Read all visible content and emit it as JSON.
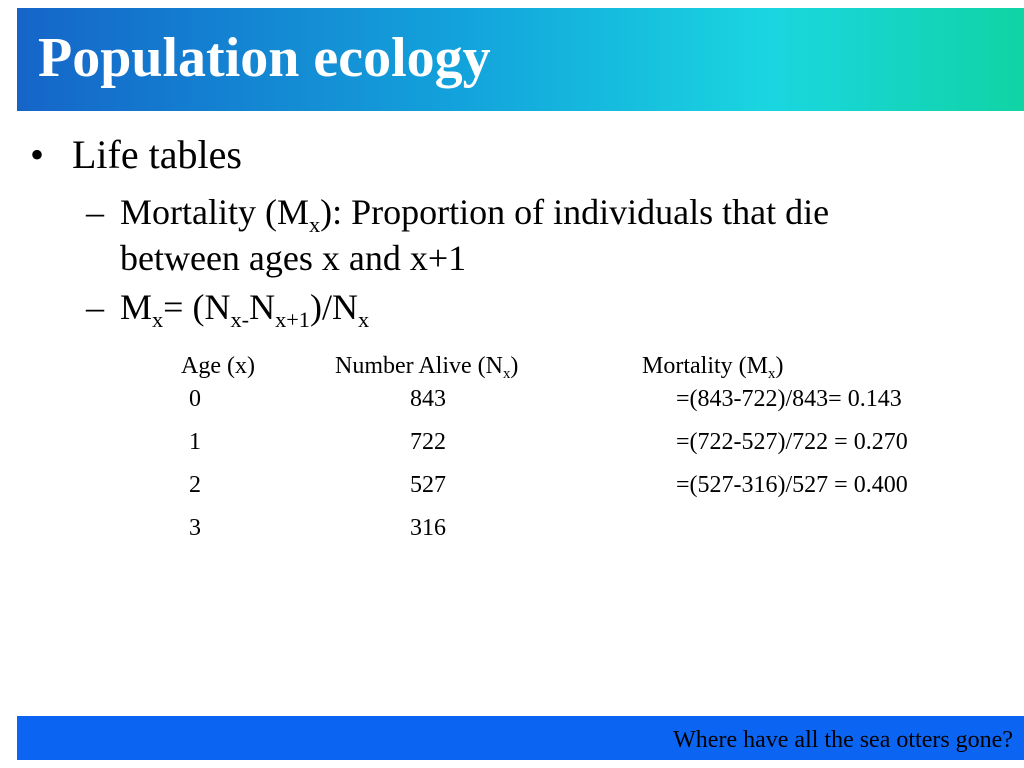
{
  "slide": {
    "title": "Population ecology",
    "bullet": "Life tables",
    "sub_bullets": {
      "mortality_def_prefix": "Mortality (M",
      "mortality_def_sub": "x",
      "mortality_def_line1_rest": "): Proportion of individuals that die",
      "mortality_def_line2": "between ages x and x+1",
      "formula_m": "M",
      "formula_m_sub": "x",
      "formula_eq": "= (N",
      "formula_n1_sub": "x-",
      "formula_n2": "N",
      "formula_n2_sub": "x+1",
      "formula_close": ")/N",
      "formula_n3_sub": "x"
    },
    "table": {
      "headers": {
        "age": "Age (x)",
        "alive_prefix": "Number Alive (N",
        "alive_sub": "x",
        "alive_suffix": ")",
        "mortality_prefix": "Mortality (M",
        "mortality_sub": "x",
        "mortality_suffix": ")"
      },
      "rows": [
        {
          "age": "0",
          "alive": "843",
          "mortality": "=(843-722)/843= 0.143"
        },
        {
          "age": "1",
          "alive": "722",
          "mortality": "=(722-527)/722 = 0.270"
        },
        {
          "age": "2",
          "alive": "527",
          "mortality": "=(527-316)/527 = 0.400"
        },
        {
          "age": "3",
          "alive": "316",
          "mortality": ""
        }
      ]
    },
    "footer": "Where have all the sea otters gone?",
    "colors": {
      "title_gradient": [
        "#1565c8",
        "#13a4dc",
        "#1ad6e0",
        "#10d4a4"
      ],
      "footer_bar": "#0c65f2",
      "title_text": "#ffffff"
    }
  }
}
